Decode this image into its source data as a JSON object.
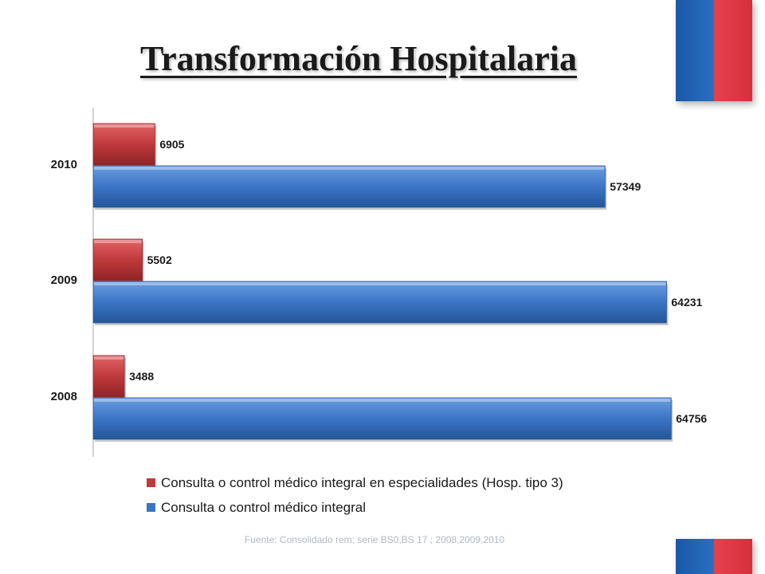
{
  "title": "Transformación Hospitalaria",
  "source": "Fuente: Consolidado rem; serie BS0,BS 17 ; 2008,2009,2010",
  "colors": {
    "red_series": "#c0393b",
    "blue_series": "#3a75c4",
    "flag_blue": "#1b57a6",
    "flag_red": "#e8404d"
  },
  "chart_data": {
    "type": "bar",
    "orientation": "horizontal",
    "categories": [
      "2010",
      "2009",
      "2008"
    ],
    "series": [
      {
        "name": "Consulta o control médico integral en especialidades (Hosp. tipo 3)",
        "color": "#c0393b",
        "values": [
          6905,
          5502,
          3488
        ]
      },
      {
        "name": "Consulta o control médico integral",
        "color": "#3a75c4",
        "values": [
          57349,
          64231,
          64756
        ]
      }
    ],
    "xlim": [
      0,
      65000
    ],
    "grid": false,
    "legend_position": "bottom"
  }
}
